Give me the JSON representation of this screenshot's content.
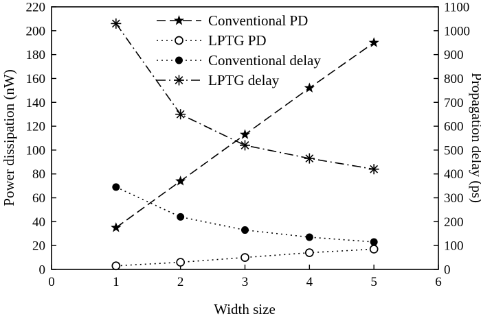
{
  "chart_data": {
    "type": "line",
    "title": "",
    "xlabel": "Width size",
    "ylabel_left": "Power dissipation (nW)",
    "ylabel_right": "Propagation delay (ps)",
    "x": [
      1,
      2,
      3,
      4,
      5
    ],
    "xlim": [
      0,
      6
    ],
    "xticks": [
      0,
      1,
      2,
      3,
      4,
      5,
      6
    ],
    "ylim_left": [
      0,
      220
    ],
    "yticks_left": [
      0,
      20,
      40,
      60,
      80,
      100,
      120,
      140,
      160,
      180,
      200,
      220
    ],
    "ylim_right": [
      0,
      1100
    ],
    "yticks_right": [
      0,
      100,
      200,
      300,
      400,
      500,
      600,
      700,
      800,
      900,
      1000,
      1100
    ],
    "grid": false,
    "legend_position": "top-center-inside",
    "color": "#000000",
    "background": "#ffffff",
    "series": [
      {
        "name": "Conventional PD",
        "axis": "left",
        "marker": "star",
        "line": "dashed",
        "values": [
          35,
          74,
          113,
          152,
          190
        ]
      },
      {
        "name": "LPTG PD",
        "axis": "left",
        "marker": "open-circle",
        "line": "dotted",
        "values": [
          3,
          6,
          10,
          14,
          17
        ]
      },
      {
        "name": "Conventional delay",
        "axis": "right",
        "marker": "filled-circle",
        "line": "dotted",
        "values": [
          345,
          220,
          165,
          135,
          115
        ]
      },
      {
        "name": "LPTG delay",
        "axis": "right",
        "marker": "asterisk",
        "line": "dash-dot",
        "values": [
          1030,
          650,
          520,
          465,
          420
        ]
      }
    ]
  }
}
